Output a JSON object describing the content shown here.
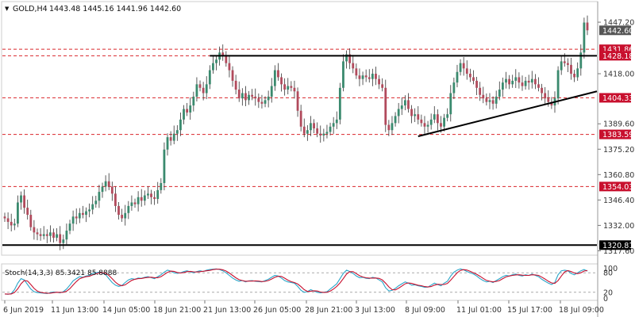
{
  "header": {
    "dropdown_glyph": "▼",
    "symbol_timeframe": "GOLD,H4",
    "ohlc": "1443.48 1445.16 1441.96 1442.60"
  },
  "colors": {
    "bull": "#3a8a6e",
    "bear": "#b14a5c",
    "wick": "#333333",
    "level_line": "#d9262b",
    "trend_line": "#000000",
    "stoch_main": "#2aa6c9",
    "stoch_signal": "#c8102e",
    "price_badge": "#555555",
    "level_badge": "#c8102e",
    "support_badge": "#000000"
  },
  "chart_data": {
    "type": "candlestick",
    "y_ticks": [
      "1447.20",
      "1418.00",
      "1389.60",
      "1375.20",
      "1360.80",
      "1346.40",
      "1332.00",
      "1317.60"
    ],
    "ylim": [
      1316,
      1458
    ],
    "x_ticks": [
      "6 Jun 2019",
      "11 Jun 13:00",
      "14 Jun 05:00",
      "18 Jun 21:00",
      "21 Jun 13:00",
      "26 Jun 05:00",
      "28 Jun 21:00",
      "3 Jul 13:00",
      "8 Jul 09:00",
      "11 Jul 01:00",
      "15 Jul 17:00",
      "18 Jul 09:00"
    ],
    "current_price": "1442.60",
    "levels": [
      {
        "label": "1431.86",
        "value": 1431.86,
        "style": "dashed"
      },
      {
        "label": "1428.18",
        "value": 1428.18,
        "style": "dashed"
      },
      {
        "label": "1404.33",
        "value": 1404.33,
        "style": "dashed"
      },
      {
        "label": "1383.59",
        "value": 1383.59,
        "style": "dashed"
      },
      {
        "label": "1354.03",
        "value": 1354.03,
        "style": "dashed"
      }
    ],
    "support": {
      "label": "1320.81",
      "value": 1320.81
    },
    "resistance": {
      "value": 1428.18,
      "from_index": 63,
      "to_index": 185
    },
    "trendline": {
      "from_index": 127,
      "from_value": 1382.5,
      "to_index": 191,
      "to_value": 1408.0
    },
    "closes": [
      1336,
      1334,
      1332,
      1333,
      1345,
      1349,
      1342,
      1338,
      1331,
      1328,
      1327,
      1326,
      1327,
      1326,
      1328,
      1325,
      1327,
      1322,
      1324,
      1329,
      1333,
      1337,
      1336,
      1339,
      1338,
      1340,
      1341,
      1344,
      1346,
      1351,
      1354,
      1357,
      1354,
      1350,
      1343,
      1338,
      1336,
      1339,
      1343,
      1345,
      1344,
      1348,
      1346,
      1349,
      1350,
      1348,
      1347,
      1352,
      1356,
      1375,
      1382,
      1380,
      1384,
      1386,
      1392,
      1398,
      1396,
      1400,
      1405,
      1412,
      1410,
      1407,
      1412,
      1420,
      1424,
      1426,
      1430,
      1428,
      1424,
      1420,
      1414,
      1409,
      1404,
      1407,
      1403,
      1406,
      1405,
      1404,
      1402,
      1401,
      1403,
      1405,
      1411,
      1420,
      1416,
      1412,
      1409,
      1411,
      1410,
      1408,
      1397,
      1388,
      1384,
      1386,
      1390,
      1387,
      1384,
      1383,
      1384,
      1385,
      1388,
      1390,
      1392,
      1410,
      1425,
      1429,
      1424,
      1421,
      1417,
      1415,
      1417,
      1416,
      1415,
      1418,
      1415,
      1412,
      1410,
      1389,
      1386,
      1390,
      1394,
      1398,
      1400,
      1403,
      1398,
      1394,
      1395,
      1392,
      1390,
      1388,
      1389,
      1392,
      1395,
      1390,
      1388,
      1393,
      1395,
      1407,
      1413,
      1419,
      1424,
      1421,
      1418,
      1416,
      1414,
      1410,
      1406,
      1404,
      1402,
      1403,
      1401,
      1405,
      1409,
      1413,
      1415,
      1412,
      1414,
      1416,
      1413,
      1411,
      1414,
      1413,
      1415,
      1412,
      1410,
      1407,
      1404,
      1402,
      1400,
      1404,
      1420,
      1425,
      1424,
      1423,
      1418,
      1416,
      1421,
      1430,
      1447,
      1442.6
    ],
    "stoch": {
      "label": "Stoch(14,3,3) 85.3421 85.8888",
      "ylim": [
        0,
        100
      ],
      "levels": [
        "80",
        "20"
      ],
      "main": [
        15,
        14,
        16,
        28,
        48,
        62,
        58,
        44,
        30,
        22,
        19,
        18,
        17,
        16,
        19,
        21,
        20,
        18,
        22,
        30,
        42,
        55,
        62,
        68,
        66,
        70,
        72,
        78,
        80,
        82,
        79,
        74,
        62,
        50,
        42,
        38,
        41,
        50,
        58,
        62,
        60,
        64,
        63,
        66,
        68,
        65,
        62,
        68,
        74,
        82,
        88,
        85,
        80,
        78,
        80,
        84,
        86,
        83,
        80,
        84,
        86,
        84,
        88,
        90,
        91,
        92,
        90,
        86,
        80,
        72,
        64,
        58,
        54,
        56,
        52,
        55,
        56,
        54,
        53,
        52,
        56,
        60,
        66,
        72,
        70,
        64,
        56,
        52,
        50,
        48,
        38,
        26,
        20,
        22,
        28,
        24,
        20,
        18,
        20,
        22,
        30,
        38,
        46,
        62,
        78,
        88,
        84,
        78,
        70,
        65,
        66,
        63,
        62,
        66,
        64,
        58,
        52,
        34,
        24,
        26,
        32,
        40,
        46,
        52,
        48,
        42,
        43,
        40,
        38,
        35,
        36,
        42,
        48,
        44,
        40,
        48,
        54,
        70,
        82,
        88,
        92,
        89,
        84,
        80,
        76,
        70,
        62,
        56,
        52,
        54,
        50,
        56,
        62,
        68,
        72,
        70,
        74,
        76,
        72,
        70,
        74,
        72,
        76,
        72,
        68,
        60,
        54,
        48,
        44,
        50,
        74,
        86,
        88,
        86,
        78,
        74,
        80,
        86,
        90,
        85
      ]
    },
    "labels_panel": {
      "top": "100",
      "bottom": "0"
    }
  }
}
